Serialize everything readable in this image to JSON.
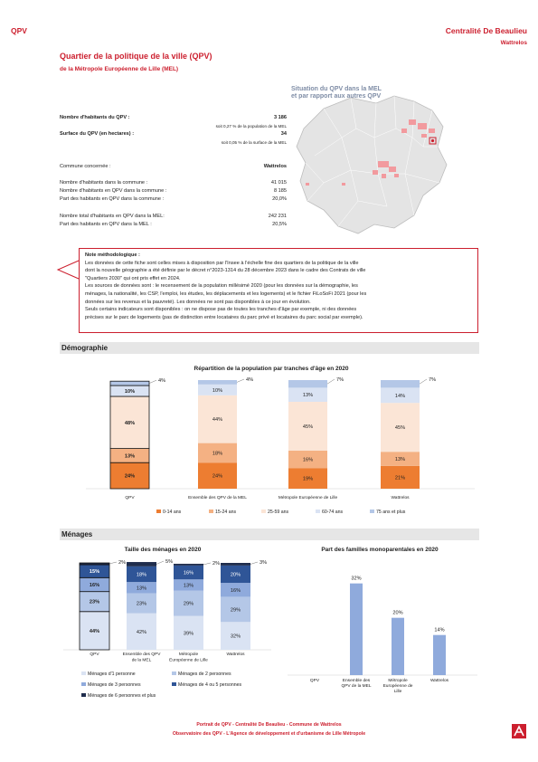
{
  "header": {
    "left": "QPV",
    "right": "Centralité De Beaulieu",
    "sub": "Wattrelos"
  },
  "title": "Quartier de la politique de la ville (QPV)",
  "subtitle": "de la Métropole Européenne de Lille (MEL)",
  "map": {
    "title_line1": "Situation du QPV dans la MEL",
    "title_line2": "et par rapport aux autres QPV"
  },
  "stats": {
    "pop_label": "Nombre d'habitants du QPV :",
    "pop_value": "3 186",
    "pop_note": "soit 0,27 % de la population de la MEL",
    "area_label": "Surface du QPV (en hectares) :",
    "area_value": "34",
    "area_note": "soit 0,05 % de la surface de la MEL",
    "commune_label": "Commune concernée :",
    "commune_value": "Wattrelos",
    "rows1": [
      {
        "label": "Nombre d'habitants dans la commune :",
        "value": "41 015"
      },
      {
        "label": "Nombre d'habitants en QPV dans la commune :",
        "value": "8 185"
      },
      {
        "label": "Part des habitants en QPV dans la commune :",
        "value": "20,0%"
      }
    ],
    "rows2": [
      {
        "label": "Nombre total d'habitants en QPV dans la MEL:",
        "value": "242 231"
      },
      {
        "label": "Part des habitants en QPV dans la MEL :",
        "value": "20,5%"
      }
    ]
  },
  "note": {
    "title": "Note méthodologique :",
    "lines": [
      "Les données de cette fiche sont celles mises à disposition par l'Insee à l'échelle fine des quartiers de la politique de la ville",
      "dont la nouvelle géographie a été définie par le décret n°2023-1314 du 28 décembre 2023 dans le cadre des Contrats de ville",
      "\"Quartiers 2030\" qui ont pris effet en 2024.",
      "Les sources de données sont : le recensement de la population millésimé 2020 (pour les données sur la démographie, les",
      "ménages, la nationalité, les CSP, l'emploi, les études, les déplacements et les logements) et le fichier FiLoSoFi 2021 (pour les",
      "données sur les revenus et la pauvreté). Les données ne sont pas disponibles à ce jour en évolution.",
      "Seuls certains indicateurs sont disponibles : on ne dispose pas de toutes les tranches d'âge par exemple, ni des données",
      "précises sur le parc de logements (pas de distinction entre locataires du parc privé et locataires du parc social par exemple)."
    ]
  },
  "sections": {
    "demo": "Démographie",
    "menages": "Ménages"
  },
  "chart_age": {
    "type": "bar",
    "title": "Répartition de la population par tranches d'âge en 2020",
    "categories": [
      "QPV",
      "Ensemble des QPV de la MEL",
      "Métropole Européenne de Lille",
      "Wattrelos"
    ],
    "series": [
      {
        "name": "0-14 ans",
        "values": [
          24,
          24,
          19,
          21
        ],
        "color": "#ed7d31"
      },
      {
        "name": "15-24 ans",
        "values": [
          13,
          18,
          16,
          13
        ],
        "color": "#f4b183"
      },
      {
        "name": "25-59 ans",
        "values": [
          48,
          44,
          45,
          45
        ],
        "color": "#fbe5d6"
      },
      {
        "name": "60-74 ans",
        "values": [
          10,
          10,
          13,
          14
        ],
        "color": "#dae3f3"
      },
      {
        "name": "75 ans et plus",
        "values": [
          4,
          4,
          7,
          7
        ],
        "color": "#b4c7e7"
      }
    ],
    "labels": [
      [
        "24%",
        "13%",
        "48%",
        "10%",
        "4%"
      ],
      [
        "24%",
        "18%",
        "44%",
        "10%",
        "4%"
      ],
      [
        "19%",
        "16%",
        "45%",
        "13%",
        "7%"
      ],
      [
        "21%",
        "13%",
        "45%",
        "14%",
        "7%"
      ]
    ]
  },
  "chart_menages": {
    "type": "bar",
    "title": "Taille des ménages en 2020",
    "categories": [
      "QPV",
      "Ensemble des QPV de la MEL",
      "Métropole Européenne de Lille",
      "Wattrelos"
    ],
    "series": [
      {
        "name": "Ménages d'1 personne",
        "values": [
          44,
          42,
          39,
          32
        ],
        "color": "#dae3f3"
      },
      {
        "name": "Ménages de 2 personnes",
        "values": [
          23,
          23,
          29,
          29
        ],
        "color": "#b4c7e7"
      },
      {
        "name": "Ménages de 3 personnes",
        "values": [
          16,
          13,
          13,
          16
        ],
        "color": "#8faadc"
      },
      {
        "name": "Ménages de 4 ou 5 personnes",
        "values": [
          15,
          18,
          16,
          20
        ],
        "color": "#2f5597"
      },
      {
        "name": "Ménages de 6 personnes et plus",
        "values": [
          2,
          5,
          2,
          3
        ],
        "color": "#1f2d4d"
      }
    ],
    "labels": [
      [
        "44%",
        "23%",
        "16%",
        "15%",
        "2%"
      ],
      [
        "42%",
        "23%",
        "13%",
        "18%",
        "5%"
      ],
      [
        "39%",
        "29%",
        "13%",
        "16%",
        "2%"
      ],
      [
        "32%",
        "29%",
        "16%",
        "20%",
        "3%"
      ]
    ]
  },
  "chart_mono": {
    "type": "bar",
    "title": "Part des familles monoparentales en 2020",
    "categories": [
      "QPV",
      "Ensemble des QPV de la MEL",
      "Métropole Européenne de Lille",
      "Wattrelos"
    ],
    "values": [
      null,
      32,
      20,
      14
    ],
    "labels": [
      "",
      "32%",
      "20%",
      "14%"
    ],
    "color": "#8faadc"
  },
  "footer": {
    "line1": "Portrait de QPV - Centralité De Beaulieu - Commune de Wattrelos",
    "line2": "Observatoire des QPV - L'Agence de développement et d'urbanisme de Lille Métropole"
  }
}
